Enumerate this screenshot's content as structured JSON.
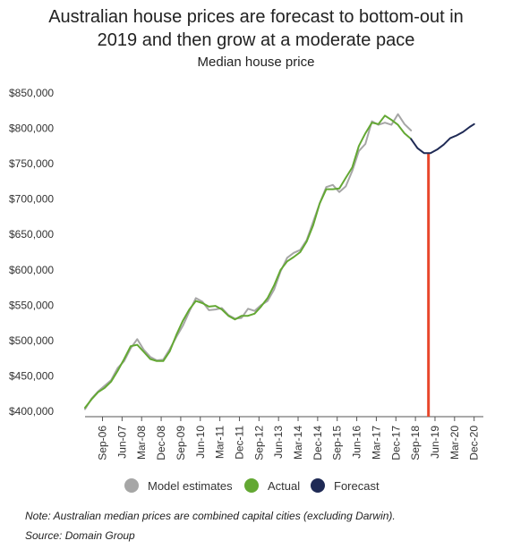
{
  "title_line1": "Australian house prices are forecast to bottom-out in",
  "title_line2": "2019 and then grow at a moderate pace",
  "subtitle": "Median house price",
  "note": "Note: Australian median prices are combined capital cities (excluding Darwin).",
  "source": "Source: Domain Group",
  "colors": {
    "model": "#a6a6a6",
    "actual": "#63a833",
    "forecast": "#1f2a55",
    "marker": "#e8472b",
    "axis": "#555555"
  },
  "chart_data": {
    "type": "line",
    "title": "Median house price",
    "xlabel": "",
    "ylabel": "",
    "ylim": [
      400000,
      850000
    ],
    "yticks": [
      400000,
      450000,
      500000,
      550000,
      600000,
      650000,
      700000,
      750000,
      800000,
      850000
    ],
    "ytick_labels": [
      "$400,000",
      "$450,000",
      "$500,000",
      "$550,000",
      "$600,000",
      "$650,000",
      "$700,000",
      "$750,000",
      "$800,000",
      "$850,000"
    ],
    "xlim": [
      2006.0,
      2021.0
    ],
    "xticks": [
      2006.67,
      2007.42,
      2008.17,
      2008.92,
      2009.67,
      2010.42,
      2011.17,
      2011.92,
      2012.67,
      2013.42,
      2014.17,
      2014.92,
      2015.67,
      2016.42,
      2017.17,
      2017.92,
      2018.67,
      2019.42,
      2020.17,
      2020.92
    ],
    "xtick_labels": [
      "Sep-06",
      "Jun-07",
      "Mar-08",
      "Dec-08",
      "Sep-09",
      "Jun-10",
      "Mar-11",
      "Dec-11",
      "Sep-12",
      "Jun-13",
      "Mar-14",
      "Dec-14",
      "Sep-15",
      "Jun-16",
      "Mar-17",
      "Dec-17",
      "Sep-18",
      "Jun-19",
      "Mar-20",
      "Dec-20"
    ],
    "grid": false,
    "legend_position": "bottom",
    "vertical_marker_x": 2019.17,
    "series": [
      {
        "name": "Model estimates",
        "color_key": "model",
        "x": [
          2006.0,
          2006.25,
          2006.5,
          2006.75,
          2007.0,
          2007.25,
          2007.5,
          2007.75,
          2008.0,
          2008.25,
          2008.5,
          2008.75,
          2009.0,
          2009.25,
          2009.5,
          2009.75,
          2010.0,
          2010.25,
          2010.5,
          2010.75,
          2011.0,
          2011.25,
          2011.5,
          2011.75,
          2012.0,
          2012.25,
          2012.5,
          2012.75,
          2013.0,
          2013.25,
          2013.5,
          2013.75,
          2014.0,
          2014.25,
          2014.5,
          2014.75,
          2015.0,
          2015.25,
          2015.5,
          2015.75,
          2016.0,
          2016.25,
          2016.5,
          2016.75,
          2017.0,
          2017.25,
          2017.5,
          2017.75,
          2018.0,
          2018.25,
          2018.5
        ],
        "y": [
          403000,
          418000,
          428000,
          436000,
          444000,
          461000,
          471000,
          489000,
          502000,
          487000,
          477000,
          472000,
          473000,
          488000,
          505000,
          521000,
          541000,
          560000,
          555000,
          543000,
          544000,
          546000,
          536000,
          531000,
          532000,
          545000,
          542000,
          550000,
          556000,
          572000,
          598000,
          617000,
          624000,
          628000,
          642000,
          668000,
          694000,
          717000,
          720000,
          710000,
          718000,
          740000,
          768000,
          778000,
          810000,
          805000,
          808000,
          805000,
          820000,
          806000,
          797000
        ]
      },
      {
        "name": "Actual",
        "color_key": "actual",
        "x": [
          2006.0,
          2006.25,
          2006.5,
          2006.75,
          2007.0,
          2007.25,
          2007.5,
          2007.75,
          2008.0,
          2008.25,
          2008.5,
          2008.75,
          2009.0,
          2009.25,
          2009.5,
          2009.75,
          2010.0,
          2010.25,
          2010.5,
          2010.75,
          2011.0,
          2011.25,
          2011.5,
          2011.75,
          2012.0,
          2012.25,
          2012.5,
          2012.75,
          2013.0,
          2013.25,
          2013.5,
          2013.75,
          2014.0,
          2014.25,
          2014.5,
          2014.75,
          2015.0,
          2015.25,
          2015.5,
          2015.75,
          2016.0,
          2016.25,
          2016.5,
          2016.75,
          2017.0,
          2017.25,
          2017.5,
          2017.75,
          2018.0,
          2018.25,
          2018.5
        ],
        "y": [
          405000,
          417000,
          427000,
          433000,
          442000,
          457000,
          474000,
          492000,
          494000,
          484000,
          474000,
          471000,
          471000,
          485000,
          508000,
          528000,
          544000,
          556000,
          553000,
          548000,
          549000,
          544000,
          535000,
          530000,
          535000,
          535000,
          538000,
          548000,
          560000,
          578000,
          600000,
          612000,
          618000,
          625000,
          640000,
          663000,
          694000,
          714000,
          714000,
          715000,
          730000,
          745000,
          775000,
          793000,
          808000,
          806000,
          818000,
          812000,
          805000,
          793000,
          785000
        ]
      },
      {
        "name": "Forecast",
        "color_key": "forecast",
        "x": [
          2018.5,
          2018.75,
          2019.0,
          2019.25,
          2019.5,
          2019.75,
          2020.0,
          2020.25,
          2020.5,
          2020.75,
          2020.92
        ],
        "y": [
          785000,
          772000,
          765000,
          765000,
          770000,
          777000,
          786000,
          790000,
          795000,
          802000,
          806000
        ]
      }
    ]
  }
}
